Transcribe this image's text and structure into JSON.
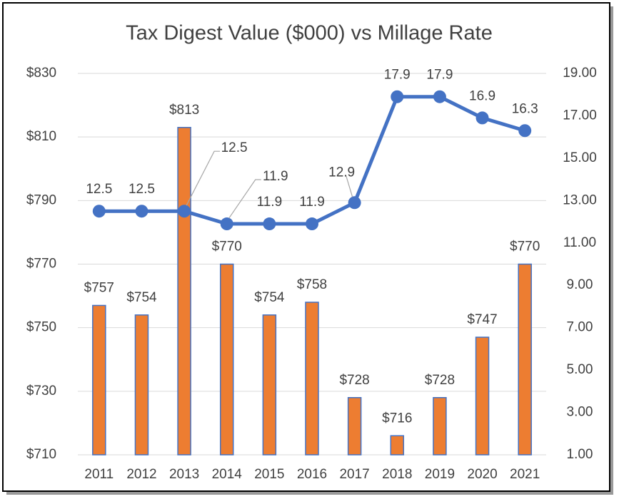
{
  "chart_data": {
    "type": "bar-line",
    "title": "Tax Digest Value ($000) vs Millage Rate",
    "categories": [
      "2011",
      "2012",
      "2013",
      "2014",
      "2015",
      "2016",
      "2017",
      "2018",
      "2019",
      "2020",
      "2021"
    ],
    "series": [
      {
        "type": "bar",
        "color": "#ED7D31",
        "edge_color": "#4472C4",
        "values": [
          757,
          754,
          813,
          770,
          754,
          758,
          728,
          716,
          728,
          747,
          770
        ],
        "value_labels": [
          "$757",
          "$754",
          "$813",
          "$770",
          "$754",
          "$758",
          "$728",
          "$716",
          "$728",
          "$747",
          "$770"
        ]
      },
      {
        "type": "line",
        "axis": "y2",
        "color": "#4472C4",
        "values": [
          12.5,
          12.5,
          12.5,
          11.9,
          11.9,
          11.9,
          12.9,
          17.9,
          17.9,
          16.9,
          16.3
        ]
      }
    ],
    "ylim": [
      710,
      830
    ],
    "yticks": [
      {
        "value": 710,
        "label": "$710"
      },
      {
        "value": 730,
        "label": "$730"
      },
      {
        "value": 750,
        "label": "$750"
      },
      {
        "value": 770,
        "label": "$770"
      },
      {
        "value": 790,
        "label": "$790"
      },
      {
        "value": 810,
        "label": "$810"
      },
      {
        "value": 830,
        "label": "$830"
      }
    ],
    "y2lim": [
      1,
      19
    ],
    "y2ticks": [
      {
        "value": 1,
        "label": "1.00"
      },
      {
        "value": 3,
        "label": "3.00"
      },
      {
        "value": 5,
        "label": "5.00"
      },
      {
        "value": 7,
        "label": "7.00"
      },
      {
        "value": 9,
        "label": "9.00"
      },
      {
        "value": 11,
        "label": "11.00"
      },
      {
        "value": 13,
        "label": "13.00"
      },
      {
        "value": 15,
        "label": "15.00"
      },
      {
        "value": 17,
        "label": "17.00"
      },
      {
        "value": 19,
        "label": "19.00"
      }
    ],
    "grid": true
  }
}
